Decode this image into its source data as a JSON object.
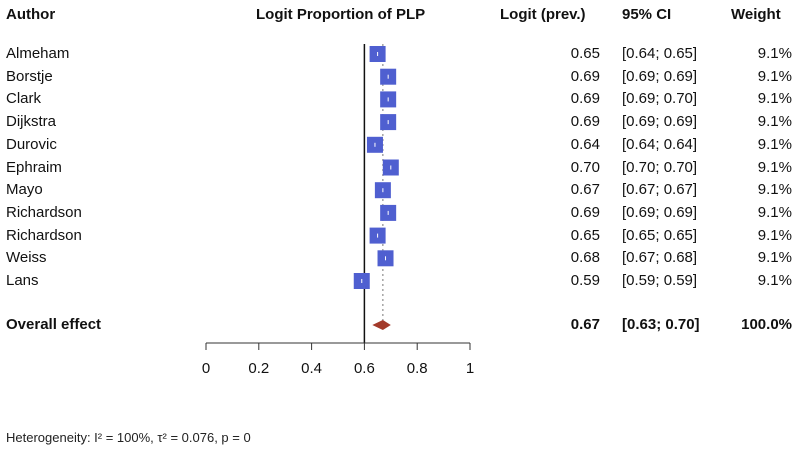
{
  "headers": {
    "author": "Author",
    "plot": "Logit Proportion of PLP",
    "logit": "Logit (prev.)",
    "ci": "95% CI",
    "weight": "Weight"
  },
  "studies": [
    {
      "author": "Almeham",
      "logit": "0.65",
      "ci": "[0.64; 0.65]",
      "weight": "9.1%"
    },
    {
      "author": "Borstje",
      "logit": "0.69",
      "ci": "[0.69; 0.69]",
      "weight": "9.1%"
    },
    {
      "author": "Clark",
      "logit": "0.69",
      "ci": "[0.69; 0.70]",
      "weight": "9.1%"
    },
    {
      "author": "Dijkstra",
      "logit": "0.69",
      "ci": "[0.69; 0.69]",
      "weight": "9.1%"
    },
    {
      "author": "Durovic",
      "logit": "0.64",
      "ci": "[0.64; 0.64]",
      "weight": "9.1%"
    },
    {
      "author": "Ephraim",
      "logit": "0.70",
      "ci": "[0.70; 0.70]",
      "weight": "9.1%"
    },
    {
      "author": "Mayo",
      "logit": "0.67",
      "ci": "[0.67; 0.67]",
      "weight": "9.1%"
    },
    {
      "author": "Richardson",
      "logit": "0.69",
      "ci": "[0.69; 0.69]",
      "weight": "9.1%"
    },
    {
      "author": "Richardson",
      "logit": "0.65",
      "ci": "[0.65; 0.65]",
      "weight": "9.1%"
    },
    {
      "author": "Weiss",
      "logit": "0.68",
      "ci": "[0.67; 0.68]",
      "weight": "9.1%"
    },
    {
      "author": "Lans",
      "logit": "0.59",
      "ci": "[0.59; 0.59]",
      "weight": "9.1%"
    }
  ],
  "overall": {
    "label": "Overall effect",
    "logit": "0.67",
    "ci": "[0.63; 0.70]",
    "weight": "100.0%"
  },
  "heterogeneity": "Heterogeneity: I² = 100%, τ² = 0.076, p = 0",
  "colors": {
    "study_marker": "#4f5fd0",
    "overall_diamond": "#a33a2a",
    "axis": "#333333"
  },
  "chart_data": {
    "type": "forest",
    "title": "Logit Proportion of PLP",
    "xlim": [
      0,
      1
    ],
    "ticks": [
      0,
      0.2,
      0.4,
      0.6,
      0.8,
      1
    ],
    "tick_labels": [
      "0",
      "0.2",
      "0.4",
      "0.6",
      "0.8",
      "1"
    ],
    "reference_line": 0.6,
    "categories": [
      "Almeham",
      "Borstje",
      "Clark",
      "Dijkstra",
      "Durovic",
      "Ephraim",
      "Mayo",
      "Richardson",
      "Richardson",
      "Weiss",
      "Lans"
    ],
    "estimates": [
      0.65,
      0.69,
      0.69,
      0.69,
      0.64,
      0.7,
      0.67,
      0.69,
      0.65,
      0.68,
      0.59
    ],
    "ci_lower": [
      0.64,
      0.69,
      0.69,
      0.69,
      0.64,
      0.7,
      0.67,
      0.69,
      0.65,
      0.67,
      0.59
    ],
    "ci_upper": [
      0.65,
      0.69,
      0.7,
      0.69,
      0.64,
      0.7,
      0.67,
      0.69,
      0.65,
      0.68,
      0.59
    ],
    "weights": [
      9.1,
      9.1,
      9.1,
      9.1,
      9.1,
      9.1,
      9.1,
      9.1,
      9.1,
      9.1,
      9.1
    ],
    "overall": {
      "estimate": 0.67,
      "ci_lower": 0.63,
      "ci_upper": 0.7,
      "weight": 100.0
    }
  }
}
